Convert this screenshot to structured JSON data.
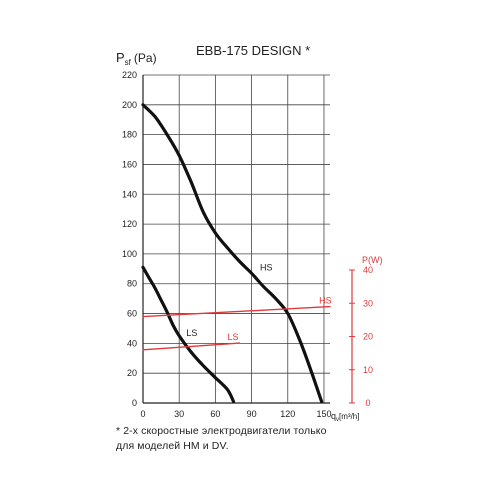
{
  "chart_data": {
    "type": "line",
    "title": "EBB-175 DESIGN *",
    "ylabel_main": "P",
    "ylabel_sub": "sf",
    "ylabel_unit": "(Pa)",
    "xlabel_main": "q",
    "xlabel_sub": "v",
    "xlabel_unit": "[m³/h]",
    "y2label": "P(W)",
    "xlim": [
      0,
      155
    ],
    "ylim": [
      0,
      220
    ],
    "y2lim": [
      0,
      40
    ],
    "grid": true,
    "x_ticks": [
      0,
      30,
      60,
      90,
      120,
      150
    ],
    "y_ticks": [
      0,
      20,
      40,
      60,
      80,
      100,
      120,
      140,
      160,
      180,
      200,
      220
    ],
    "y2_ticks": [
      0,
      10,
      20,
      30,
      40
    ],
    "series": [
      {
        "name": "HS",
        "axis": "left",
        "color": "#111111",
        "x": [
          0,
          10,
          20,
          30,
          40,
          50,
          60,
          70,
          80,
          90,
          100,
          110,
          120,
          130,
          140,
          148
        ],
        "y": [
          200,
          192,
          180,
          166,
          148,
          128,
          114,
          104,
          95,
          87,
          78,
          70,
          60,
          42,
          20,
          1
        ]
      },
      {
        "name": "LS",
        "axis": "left",
        "color": "#111111",
        "x": [
          0,
          5,
          10,
          15,
          20,
          25,
          30,
          40,
          50,
          60,
          70,
          75
        ],
        "y": [
          91,
          84,
          77,
          69,
          61,
          52,
          45,
          34,
          25,
          17,
          9,
          1
        ]
      },
      {
        "name": "HS",
        "axis": "right",
        "color": "#e03a3a",
        "x": [
          0,
          155
        ],
        "y": [
          26,
          29
        ]
      },
      {
        "name": "LS",
        "axis": "right",
        "color": "#e03a3a",
        "x": [
          0,
          80
        ],
        "y": [
          16,
          18
        ]
      }
    ],
    "annotations": [
      {
        "text": "HS",
        "x": 97,
        "y": 87,
        "axis": "left",
        "color": "#111111"
      },
      {
        "text": "LS",
        "x": 36,
        "y": 43,
        "axis": "left",
        "color": "#111111"
      },
      {
        "text": "HS",
        "x": 146,
        "y": 29,
        "axis": "right",
        "color": "#e03a3a"
      },
      {
        "text": "LS",
        "x": 70,
        "y": 18,
        "axis": "right",
        "color": "#e03a3a"
      }
    ]
  },
  "footnote_line1": "* 2-х скоростные электродвигатели только",
  "footnote_line2": "для моделей HM и DV."
}
